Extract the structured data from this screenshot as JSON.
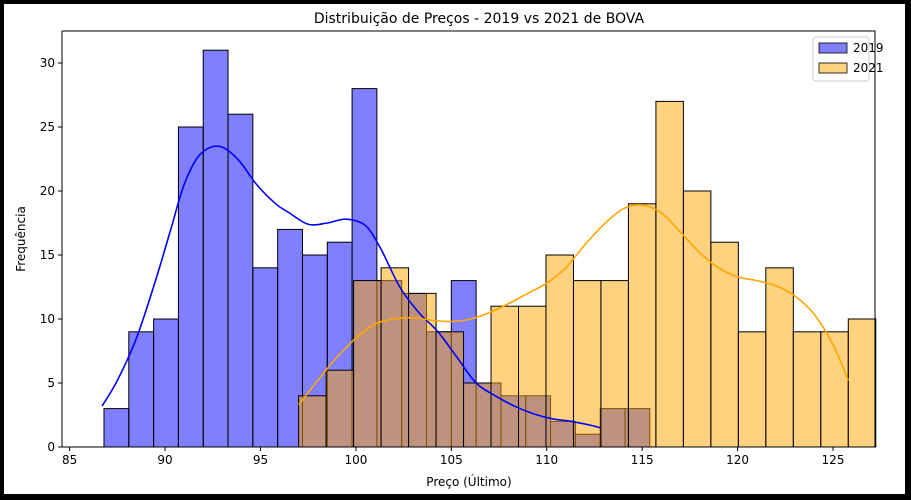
{
  "chart_data": {
    "type": "histogram",
    "title": "Distribuição de Preços - 2019 vs 2021 de BOVA",
    "xlabel": "Preço (Último)",
    "ylabel": "Frequência",
    "xlim": [
      84.6,
      127.2
    ],
    "ylim": [
      0,
      32.5
    ],
    "xticks": [
      85,
      90,
      95,
      100,
      105,
      110,
      115,
      120,
      125
    ],
    "yticks": [
      0,
      5,
      10,
      15,
      20,
      25,
      30
    ],
    "grid": false,
    "legend_position": "top-right",
    "series": [
      {
        "name": "2019",
        "color": "#0000ff",
        "bin_start": 86.8,
        "bin_width": 1.3,
        "counts": [
          3,
          9,
          10,
          25,
          31,
          26,
          14,
          17,
          15,
          16,
          28,
          13,
          12,
          9,
          13,
          5,
          4,
          4,
          2,
          1,
          3,
          3
        ],
        "kde": [
          [
            86.7,
            3.2
          ],
          [
            87.5,
            5.2
          ],
          [
            88.5,
            8.5
          ],
          [
            89.5,
            13.0
          ],
          [
            90.3,
            17.0
          ],
          [
            91.0,
            20.5
          ],
          [
            91.8,
            22.8
          ],
          [
            92.8,
            23.5
          ],
          [
            93.8,
            22.5
          ],
          [
            94.8,
            20.5
          ],
          [
            95.8,
            19.0
          ],
          [
            96.5,
            18.3
          ],
          [
            97.5,
            17.4
          ],
          [
            98.5,
            17.5
          ],
          [
            99.5,
            17.8
          ],
          [
            100.5,
            17.3
          ],
          [
            101.3,
            15.5
          ],
          [
            102.3,
            12.5
          ],
          [
            103.3,
            10.5
          ],
          [
            104.3,
            9.0
          ],
          [
            105.3,
            7.0
          ],
          [
            106.3,
            5.0
          ],
          [
            107.3,
            4.0
          ],
          [
            108.3,
            3.2
          ],
          [
            109.3,
            2.6
          ],
          [
            110.3,
            2.2
          ],
          [
            111.3,
            2.0
          ],
          [
            112.3,
            1.7
          ],
          [
            112.8,
            1.5
          ]
        ]
      },
      {
        "name": "2021",
        "color": "#ffa500",
        "bin_start": 97.0,
        "bin_width": 1.44,
        "counts": [
          4,
          6,
          13,
          14,
          12,
          9,
          5,
          11,
          11,
          15,
          13,
          13,
          19,
          27,
          20,
          16,
          9,
          14,
          9,
          9,
          10
        ],
        "kde": [
          [
            97.0,
            3.3
          ],
          [
            98.0,
            5.2
          ],
          [
            99.0,
            7.0
          ],
          [
            100.0,
            8.5
          ],
          [
            101.0,
            9.6
          ],
          [
            102.0,
            10.0
          ],
          [
            103.0,
            10.1
          ],
          [
            104.0,
            9.9
          ],
          [
            105.0,
            9.8
          ],
          [
            106.0,
            10.0
          ],
          [
            107.0,
            10.5
          ],
          [
            108.0,
            11.2
          ],
          [
            109.0,
            12.0
          ],
          [
            110.0,
            12.8
          ],
          [
            111.0,
            14.0
          ],
          [
            112.0,
            15.8
          ],
          [
            113.0,
            17.4
          ],
          [
            114.0,
            18.6
          ],
          [
            115.0,
            18.9
          ],
          [
            116.0,
            18.3
          ],
          [
            117.0,
            16.8
          ],
          [
            118.0,
            15.2
          ],
          [
            119.0,
            14.0
          ],
          [
            120.0,
            13.3
          ],
          [
            121.0,
            13.0
          ],
          [
            122.0,
            12.6
          ],
          [
            123.0,
            11.8
          ],
          [
            124.0,
            10.4
          ],
          [
            125.0,
            8.0
          ],
          [
            125.8,
            5.2
          ]
        ]
      }
    ]
  }
}
